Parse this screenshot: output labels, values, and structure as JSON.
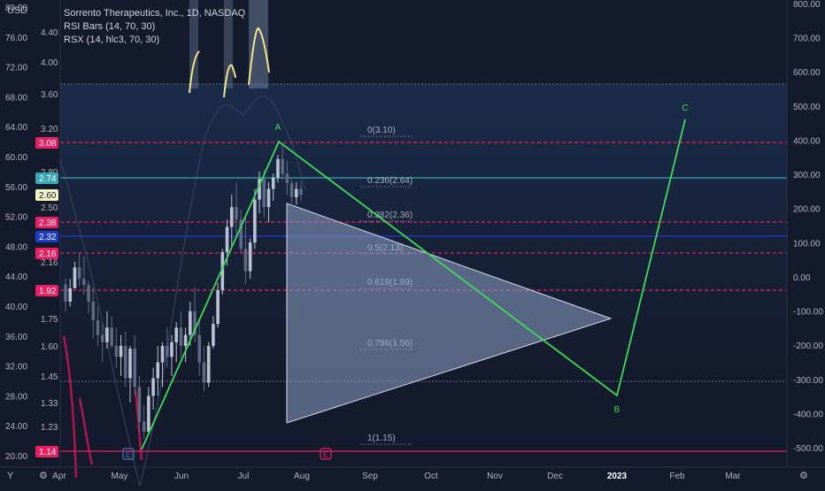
{
  "currency": "USD",
  "legend": {
    "title": "Sorrento Therapeutics, Inc., 1D, NASDAQ",
    "line2": "RSI Bars (14, 70, 30)",
    "line3": "RSX (14, hlc3, 70, 30)"
  },
  "chart_data": {
    "type": "candlestick",
    "symbol": "Sorrento Therapeutics, Inc., 1D, NASDAQ",
    "left_axis_ticks": [
      "80.00",
      "76.00",
      "72.00",
      "68.00",
      "64.00",
      "60.00",
      "56.00",
      "52.00",
      "48.00",
      "44.00",
      "40.00",
      "36.00",
      "32.00",
      "28.00",
      "24.00",
      "20.00"
    ],
    "price_ticks": [
      "4.40",
      "4.00",
      "3.60",
      "3.20",
      "2.80",
      "2.50",
      "2.16",
      "1.75",
      "1.60",
      "1.45",
      "1.33",
      "1.23"
    ],
    "right_axis_ticks": [
      "800.00",
      "700.00",
      "600.00",
      "500.00",
      "400.00",
      "300.00",
      "200.00",
      "100.00",
      "0.00",
      "-100.00",
      "-200.00",
      "-300.00",
      "-400.00",
      "-500.00"
    ],
    "x_ticks": [
      "Apr",
      "May",
      "Jun",
      "Jul",
      "Aug",
      "Sep",
      "Oct",
      "Nov",
      "Dec",
      "2023",
      "Feb",
      "Mar"
    ],
    "price_badges": [
      {
        "label": "3.08",
        "color": "#e91e63"
      },
      {
        "label": "2.74",
        "color": "#3aa7b5"
      },
      {
        "label": "2.60",
        "color": "#f3f3c8"
      },
      {
        "label": "2.38",
        "color": "#e91e63"
      },
      {
        "label": "2.32",
        "color": "#1e3cc8"
      },
      {
        "label": "2.16",
        "color": "#e91e63"
      },
      {
        "label": "1.92",
        "color": "#e91e63"
      },
      {
        "label": "1.14",
        "color": "#e91e63"
      }
    ],
    "fib_levels": [
      {
        "label": "0(3.10)",
        "value": 3.1
      },
      {
        "label": "0.236(2.64)",
        "value": 2.64
      },
      {
        "label": "0.382(2.36)",
        "value": 2.36
      },
      {
        "label": "0.5(2.13)",
        "value": 2.13
      },
      {
        "label": "0.618(1.89)",
        "value": 1.89
      },
      {
        "label": "0.786(1.56)",
        "value": 1.56
      },
      {
        "label": "1(1.15)",
        "value": 1.15
      }
    ],
    "pattern_points": [
      "A",
      "B",
      "C"
    ],
    "event_markers": [
      "E",
      "E"
    ],
    "candles": [
      [
        1.95,
        1.98,
        1.78,
        1.82
      ],
      [
        1.82,
        1.98,
        1.8,
        1.93
      ],
      [
        1.93,
        2.07,
        1.9,
        2.04
      ],
      [
        2.04,
        2.16,
        1.94,
        1.98
      ],
      [
        1.98,
        2.1,
        1.85,
        1.89
      ],
      [
        1.89,
        1.97,
        1.77,
        1.82
      ],
      [
        1.82,
        1.88,
        1.64,
        1.74
      ],
      [
        1.74,
        1.8,
        1.6,
        1.66
      ],
      [
        1.66,
        1.72,
        1.5,
        1.62
      ],
      [
        1.62,
        1.78,
        1.55,
        1.7
      ],
      [
        1.7,
        1.76,
        1.55,
        1.6
      ],
      [
        1.6,
        1.7,
        1.48,
        1.52
      ],
      [
        1.52,
        1.66,
        1.45,
        1.6
      ],
      [
        1.6,
        1.68,
        1.4,
        1.44
      ],
      [
        1.44,
        1.58,
        1.33,
        1.55
      ],
      [
        1.55,
        1.66,
        1.36,
        1.4
      ],
      [
        1.4,
        1.45,
        1.2,
        1.25
      ],
      [
        1.25,
        1.32,
        1.16,
        1.2
      ],
      [
        1.2,
        1.4,
        1.18,
        1.36
      ],
      [
        1.36,
        1.48,
        1.3,
        1.44
      ],
      [
        1.44,
        1.56,
        1.36,
        1.5
      ],
      [
        1.5,
        1.62,
        1.4,
        1.58
      ],
      [
        1.58,
        1.7,
        1.48,
        1.52
      ],
      [
        1.52,
        1.66,
        1.45,
        1.62
      ],
      [
        1.62,
        1.73,
        1.5,
        1.7
      ],
      [
        1.7,
        1.78,
        1.52,
        1.56
      ],
      [
        1.56,
        1.7,
        1.5,
        1.66
      ],
      [
        1.66,
        1.82,
        1.6,
        1.78
      ],
      [
        1.78,
        1.88,
        1.62,
        1.66
      ],
      [
        1.66,
        1.74,
        1.45,
        1.5
      ],
      [
        1.5,
        1.6,
        1.38,
        1.42
      ],
      [
        1.42,
        1.62,
        1.4,
        1.58
      ],
      [
        1.58,
        1.76,
        1.55,
        1.72
      ],
      [
        1.72,
        1.96,
        1.7,
        1.92
      ],
      [
        1.92,
        2.2,
        1.85,
        2.15
      ],
      [
        2.15,
        2.4,
        2.05,
        2.34
      ],
      [
        2.34,
        2.6,
        2.22,
        2.5
      ],
      [
        2.5,
        2.65,
        2.3,
        2.4
      ],
      [
        2.4,
        2.48,
        2.12,
        2.2
      ],
      [
        2.2,
        2.36,
        1.95,
        2.02
      ],
      [
        2.02,
        2.3,
        1.98,
        2.26
      ],
      [
        2.26,
        2.62,
        2.2,
        2.56
      ],
      [
        2.56,
        2.8,
        2.45,
        2.72
      ],
      [
        2.72,
        2.82,
        2.42,
        2.5
      ],
      [
        2.5,
        2.66,
        2.35,
        2.62
      ],
      [
        2.62,
        2.78,
        2.55,
        2.74
      ],
      [
        2.74,
        2.96,
        2.65,
        2.92
      ],
      [
        2.92,
        3.06,
        2.7,
        2.78
      ],
      [
        2.78,
        2.9,
        2.6,
        2.64
      ],
      [
        2.64,
        2.7,
        2.5,
        2.58
      ],
      [
        2.58,
        2.66,
        2.52,
        2.62
      ],
      [
        2.62,
        2.68,
        2.55,
        2.6
      ]
    ]
  }
}
